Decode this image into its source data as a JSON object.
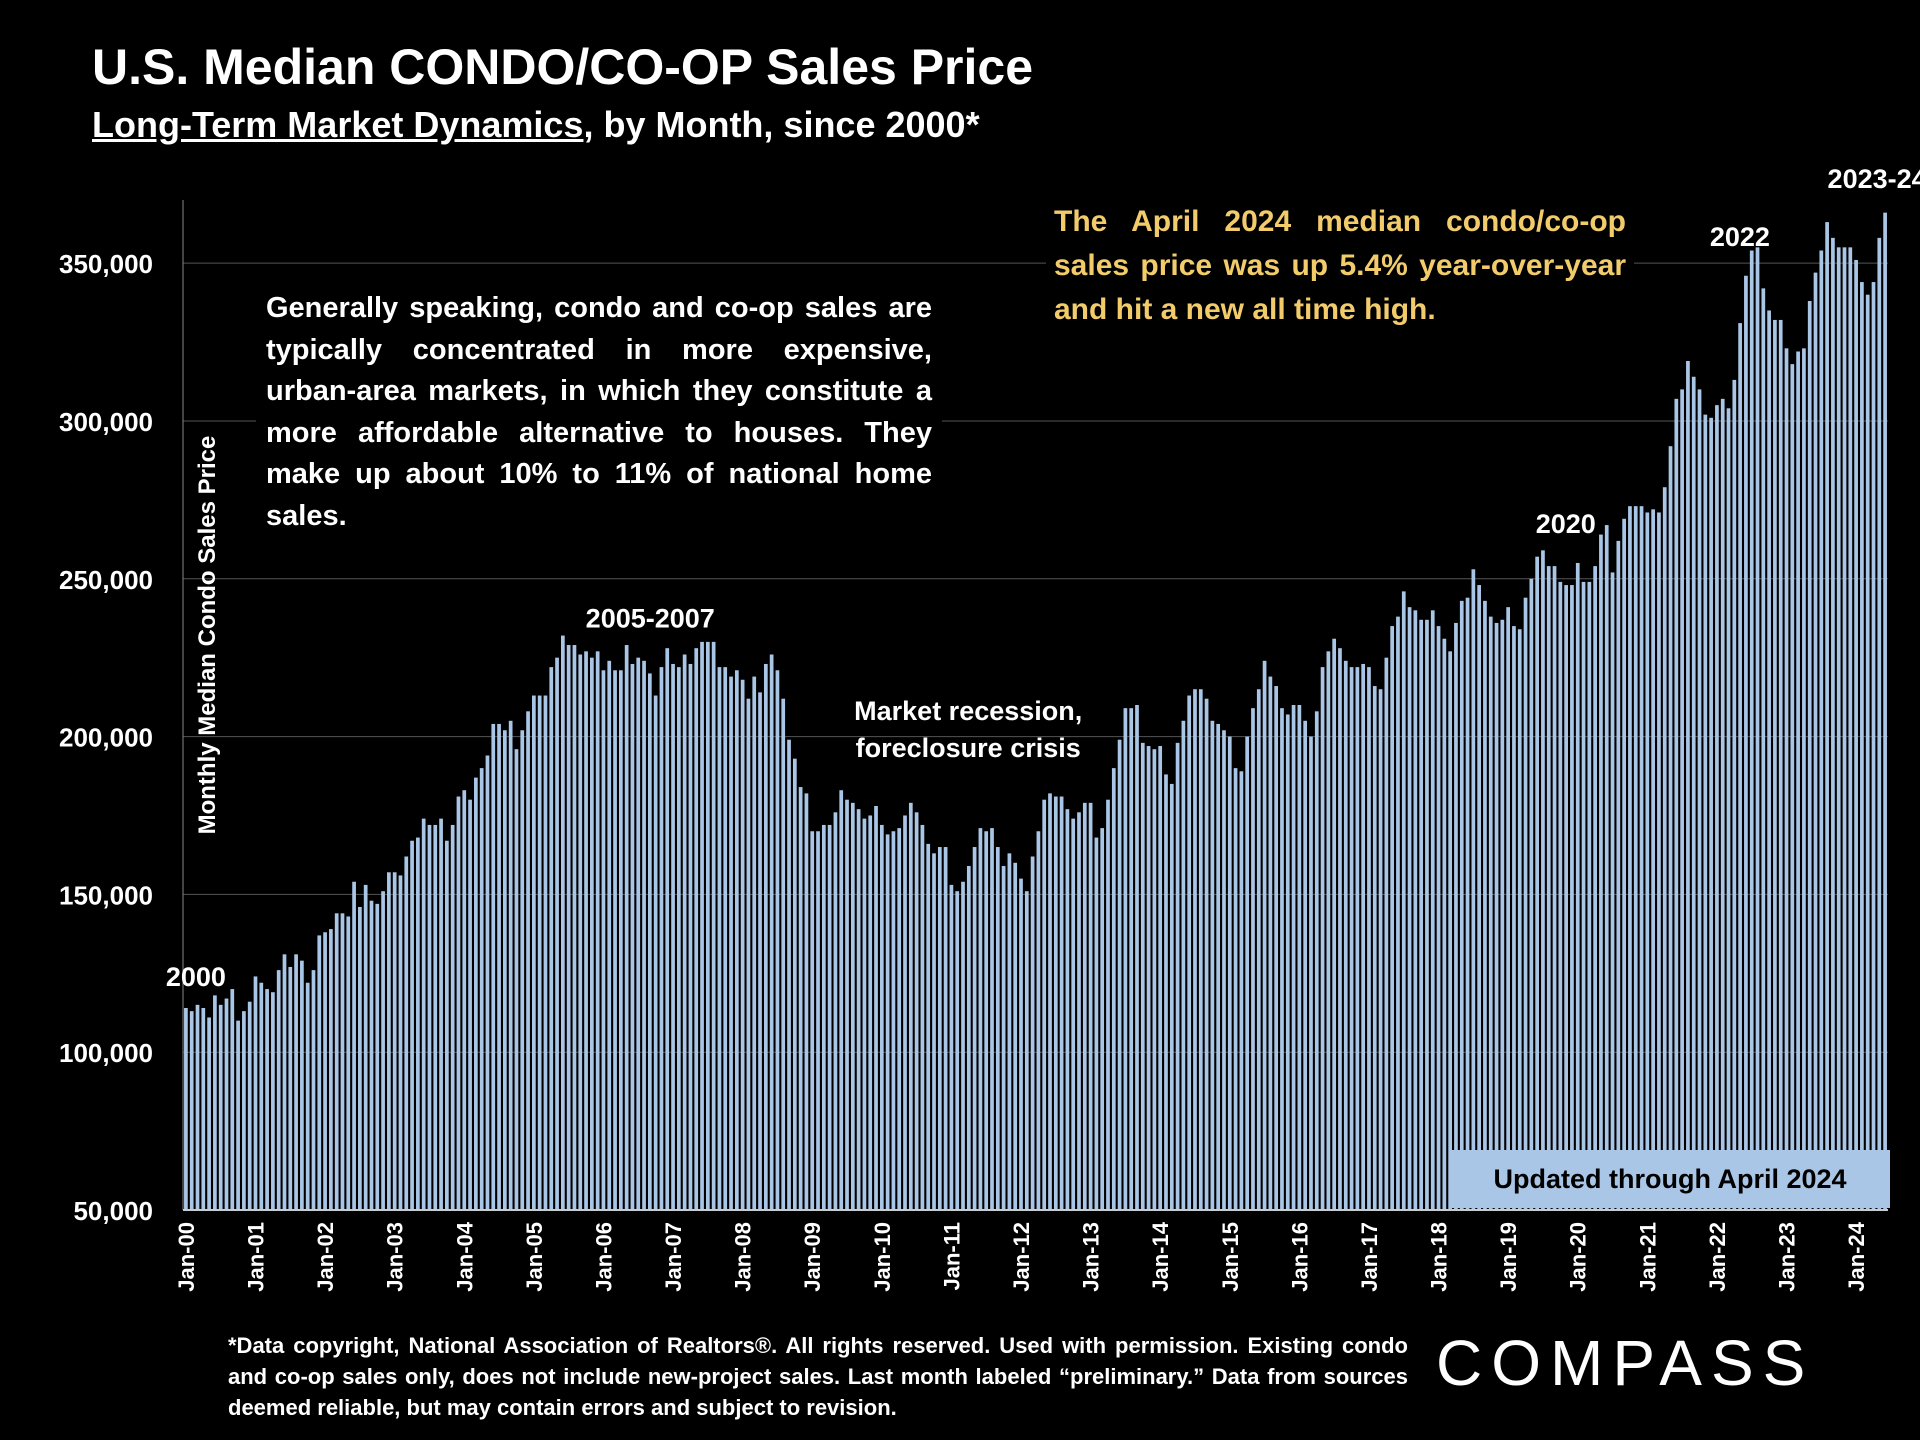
{
  "header": {
    "title": "U.S. Median CONDO/CO-OP Sales Price",
    "subtitle_link": "Long-Term Market Dynamics",
    "subtitle_rest": ", by Month, since 2000*"
  },
  "note": "Generally speaking, condo and co-op sales are typically concentrated in more expensive, urban-area markets, in which they constitute a more affordable alternative to houses. They make up about 10% to 11% of national home sales.",
  "highlight": "The April 2024 median condo/co-op sales price was up 5.4% year-over-year and hit a new all time high.",
  "updated_badge": "Updated through April 2024",
  "footnote": "*Data copyright, National Association of Realtors®. All rights reserved. Used with permission. Existing condo and co-op sales only, does not include new-project sales. Last month labeled “preliminary.” Data from sources deemed reliable, but may contain errors and subject to revision.",
  "logo": "COMPASS",
  "colors": {
    "background": "#000000",
    "bar": "#a9c6e6",
    "highlight_text": "#f2cc6b",
    "text": "#ffffff",
    "gridline": "#555555"
  },
  "chart_data": {
    "type": "bar",
    "ylabel": "Monthly Median Condo Sales Price",
    "xlabel": "",
    "ylim": [
      50000,
      370000
    ],
    "yticks": [
      50000,
      100000,
      150000,
      200000,
      250000,
      300000,
      350000
    ],
    "ytick_labels": [
      "50,000",
      "100,000",
      "150,000",
      "200,000",
      "250,000",
      "300,000",
      "350,000"
    ],
    "grid": "horizontal",
    "start_month": "Jan-00",
    "xtick_labels": [
      "Jan-00",
      "Jan-01",
      "Jan-02",
      "Jan-03",
      "Jan-04",
      "Jan-05",
      "Jan-06",
      "Jan-07",
      "Jan-08",
      "Jan-09",
      "Jan-10",
      "Jan-11",
      "Jan-12",
      "Jan-13",
      "Jan-14",
      "Jan-15",
      "Jan-16",
      "Jan-17",
      "Jan-18",
      "Jan-19",
      "Jan-20",
      "Jan-21",
      "Jan-22",
      "Jan-23",
      "Jan-24"
    ],
    "values": [
      114000,
      113000,
      115000,
      114000,
      111000,
      118000,
      115000,
      117000,
      120000,
      110000,
      113000,
      116000,
      124000,
      122000,
      120000,
      119000,
      126000,
      131000,
      127000,
      131000,
      129000,
      122000,
      126000,
      137000,
      138000,
      139000,
      144000,
      144000,
      143000,
      154000,
      146000,
      153000,
      148000,
      147000,
      151000,
      157000,
      157000,
      156000,
      162000,
      167000,
      168000,
      174000,
      172000,
      172000,
      174000,
      167000,
      172000,
      181000,
      183000,
      180000,
      187000,
      190000,
      194000,
      204000,
      204000,
      202000,
      205000,
      196000,
      202000,
      208000,
      213000,
      213000,
      213000,
      222000,
      225000,
      232000,
      229000,
      229000,
      226000,
      227000,
      225000,
      227000,
      221000,
      224000,
      221000,
      221000,
      229000,
      223000,
      225000,
      224000,
      220000,
      213000,
      222000,
      228000,
      223000,
      222000,
      226000,
      223000,
      228000,
      230000,
      230000,
      230000,
      222000,
      222000,
      219000,
      221000,
      218000,
      212000,
      219000,
      214000,
      223000,
      226000,
      221000,
      212000,
      199000,
      193000,
      184000,
      182000,
      170000,
      170000,
      172000,
      172000,
      176000,
      183000,
      180000,
      179000,
      177000,
      174000,
      175000,
      178000,
      172000,
      169000,
      170000,
      171000,
      175000,
      179000,
      176000,
      172000,
      166000,
      163000,
      165000,
      165000,
      153000,
      151000,
      154000,
      159000,
      165000,
      171000,
      170000,
      171000,
      165000,
      159000,
      163000,
      160000,
      155000,
      151000,
      162000,
      170000,
      180000,
      182000,
      181000,
      181000,
      177000,
      174000,
      176000,
      179000,
      179000,
      168000,
      171000,
      180000,
      190000,
      199000,
      209000,
      209000,
      210000,
      198000,
      197000,
      196000,
      197000,
      188000,
      185000,
      198000,
      205000,
      213000,
      215000,
      215000,
      212000,
      205000,
      204000,
      202000,
      200000,
      190000,
      189000,
      200000,
      209000,
      215000,
      224000,
      219000,
      216000,
      209000,
      207000,
      210000,
      210000,
      205000,
      200000,
      208000,
      222000,
      227000,
      231000,
      228000,
      224000,
      222000,
      222000,
      223000,
      222000,
      216000,
      215000,
      225000,
      235000,
      238000,
      246000,
      241000,
      240000,
      237000,
      237000,
      240000,
      235000,
      231000,
      227000,
      236000,
      243000,
      244000,
      253000,
      248000,
      243000,
      238000,
      236000,
      237000,
      241000,
      235000,
      234000,
      244000,
      250000,
      257000,
      259000,
      254000,
      254000,
      249000,
      248000,
      248000,
      255000,
      249000,
      249000,
      254000,
      264000,
      267000,
      252000,
      262000,
      269000,
      273000,
      273000,
      273000,
      271000,
      272000,
      271000,
      279000,
      292000,
      307000,
      310000,
      319000,
      314000,
      310000,
      302000,
      301000,
      305000,
      307000,
      304000,
      313000,
      331000,
      346000,
      354000,
      355000,
      342000,
      335000,
      332000,
      332000,
      323000,
      318000,
      322000,
      323000,
      338000,
      347000,
      354000,
      363000,
      358000,
      355000,
      355000,
      355000,
      351000,
      344000,
      340000,
      344000,
      358000,
      366000
    ],
    "annotations": [
      {
        "text": "2000",
        "index": 0
      },
      {
        "text": "2005-2007",
        "index": 78
      },
      {
        "text": "Market recession, foreclosure crisis",
        "index": 128
      },
      {
        "text": "2020",
        "index": 240
      },
      {
        "text": "2022",
        "index": 269
      },
      {
        "text": "2023-24",
        "index": 283
      }
    ]
  }
}
